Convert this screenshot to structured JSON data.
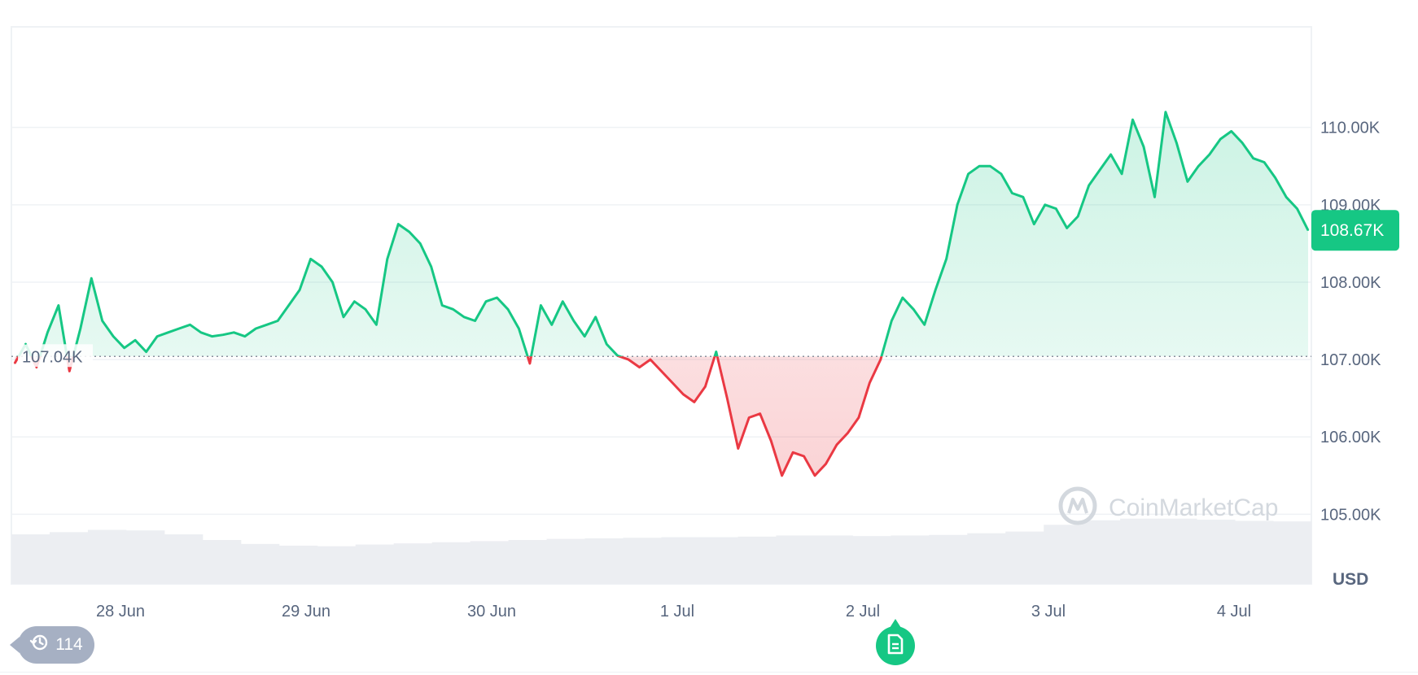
{
  "chart_data": {
    "type": "area",
    "currency_unit": "USD",
    "reference_label": "107.04K",
    "current_price_label": "108.67K",
    "y_ticks": [
      "110.00K",
      "109.00K",
      "108.00K",
      "107.00K",
      "106.00K",
      "105.00K"
    ],
    "x_ticks": [
      "28 Jun",
      "29 Jun",
      "30 Jun",
      "1 Jul",
      "2 Jul",
      "3 Jul",
      "4 Jul"
    ],
    "ylim": [
      104100,
      111300
    ],
    "reference_value": 107040,
    "current_value": 108670,
    "grid": true,
    "colors": {
      "up": "#16c784",
      "down": "#ea3943",
      "axis_text": "#58667e"
    },
    "series": [
      {
        "values": [
          106950,
          107200,
          106900,
          107350,
          107700,
          106850,
          107400,
          108050,
          107500,
          107300,
          107150,
          107250,
          107100,
          107300,
          107350,
          107400,
          107450,
          107350,
          107300,
          107320,
          107350,
          107300,
          107400,
          107450,
          107500,
          107700,
          107900,
          108300,
          108200,
          108000,
          107550,
          107750,
          107650,
          107450,
          108300,
          108750,
          108650,
          108500,
          108200,
          107700,
          107650,
          107550,
          107500,
          107750,
          107800,
          107650,
          107400,
          106950,
          107700,
          107450,
          107750,
          107500,
          107300,
          107550,
          107200,
          107050,
          107000,
          106900,
          107000,
          106850,
          106700,
          106550,
          106450,
          106650,
          107100,
          106500,
          105850,
          106250,
          106300,
          105950,
          105500,
          105800,
          105750,
          105500,
          105650,
          105900,
          106050,
          106250,
          106700,
          107000,
          107500,
          107800,
          107650,
          107450,
          107900,
          108300,
          109000,
          109400,
          109500,
          109500,
          109400,
          109150,
          109100,
          108750,
          109000,
          108950,
          108700,
          108850,
          109250,
          109450,
          109650,
          109400,
          110100,
          109750,
          109100,
          110200,
          109800,
          109300,
          109500,
          109650,
          109850,
          109950,
          109800,
          109600,
          109550,
          109350,
          109100,
          108950,
          108670
        ]
      }
    ],
    "volume_series": {
      "values": [
        0.88,
        0.92,
        0.96,
        0.95,
        0.88,
        0.78,
        0.71,
        0.68,
        0.67,
        0.7,
        0.72,
        0.74,
        0.76,
        0.78,
        0.8,
        0.81,
        0.82,
        0.83,
        0.83,
        0.84,
        0.86,
        0.86,
        0.85,
        0.86,
        0.87,
        0.9,
        0.93,
        1.05,
        1.13,
        1.16,
        1.16,
        1.14,
        1.12,
        1.11
      ]
    }
  },
  "watermark": {
    "text": "CoinMarketCap"
  },
  "controls": {
    "history_count": "114"
  },
  "icons": {
    "history": "history-icon",
    "news": "document-icon",
    "logo": "coinmarketcap-logo-icon"
  }
}
